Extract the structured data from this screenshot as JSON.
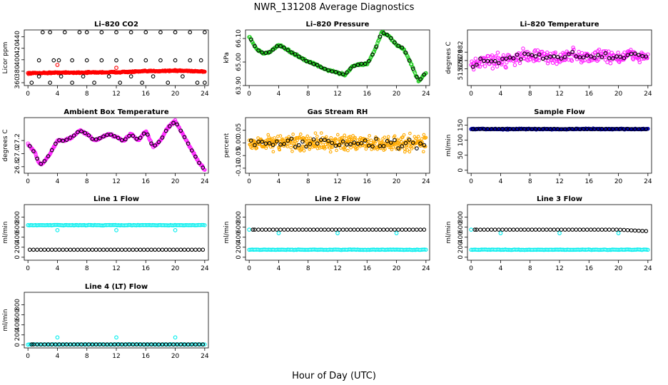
{
  "title": "NWR_131208  Average Diagnostics",
  "xlabel": "Hour of Day (UTC)",
  "colors": {
    "co2_main": "#ff0000",
    "pressure_main": "#22cc22",
    "temperature_main": "#ff22ff",
    "rh_main": "#ffaa00",
    "sample_main": "#0000aa",
    "line_main": "#00eeee",
    "avg": "#000000"
  },
  "chart_data": [
    {
      "type": "scatter",
      "title": "Li–820 CO2",
      "ylabel": "Licor ppm",
      "ylim": [
        355,
        452
      ],
      "yticks": [
        360,
        380,
        400,
        420,
        440
      ],
      "ytick_labels": [
        "360",
        "380",
        "400",
        "420",
        "440"
      ],
      "xlim": [
        -0.5,
        24.5
      ],
      "xticks": [
        0,
        4,
        8,
        12,
        16,
        20,
        24
      ],
      "xtick_labels": [
        "0",
        "4",
        "8",
        "12",
        "16",
        "20",
        "24"
      ],
      "series": [
        {
          "role": "main",
          "color": "#ff0000",
          "x": [
            0,
            2,
            4,
            6,
            8,
            10,
            12,
            14,
            16,
            18,
            20,
            22,
            24
          ],
          "y": [
            376.5,
            377,
            377.5,
            377.5,
            377.8,
            378,
            378.3,
            379,
            380,
            380.5,
            381,
            380.5,
            379.5
          ]
        },
        {
          "role": "avg_high",
          "color": "#000000",
          "x": [
            2,
            3,
            5,
            7,
            8,
            10,
            12,
            14,
            16,
            18,
            20,
            22,
            24
          ],
          "y": [
            448,
            448,
            448,
            448,
            448,
            448,
            448,
            448,
            448,
            448,
            448,
            448,
            448
          ]
        },
        {
          "role": "avg_mid",
          "color": "#000000",
          "x": [
            1.5,
            3.5,
            4.2,
            6,
            8,
            10,
            12,
            14,
            16,
            18,
            20,
            22,
            23.5
          ],
          "y": [
            399,
            399,
            399,
            399,
            399,
            399,
            399,
            399,
            399,
            399,
            399,
            399,
            399
          ]
        },
        {
          "role": "avg_low",
          "color": "#000000",
          "x": [
            0.5,
            1.5,
            3,
            4.5,
            6,
            7.5,
            9,
            11,
            12.5,
            14,
            15.5,
            17,
            19,
            21,
            23,
            24
          ],
          "y": [
            360,
            371,
            360,
            371,
            360,
            371,
            360,
            371,
            360,
            371,
            360,
            371,
            360,
            371,
            360,
            360
          ]
        }
      ]
    },
    {
      "type": "scatter",
      "title": "Li–820 Pressure",
      "ylabel": "kPa",
      "ylim": [
        63.9,
        66.5
      ],
      "yticks": [
        63.9,
        65.0,
        66.1
      ],
      "ytick_labels": [
        "63.90",
        "65.00",
        "66.10"
      ],
      "xlim": [
        -0.5,
        24.5
      ],
      "xticks": [
        0,
        4,
        8,
        12,
        16,
        20,
        24
      ],
      "xtick_labels": [
        "0",
        "4",
        "8",
        "12",
        "16",
        "20",
        "24"
      ],
      "series": [
        {
          "role": "main",
          "color": "#22cc22",
          "x": [
            0,
            1,
            2,
            3,
            4,
            5,
            6,
            7,
            8,
            9,
            10,
            11,
            12,
            13,
            14,
            15,
            16,
            17,
            18,
            19,
            20,
            21,
            22,
            23,
            24
          ],
          "y": [
            66.2,
            65.6,
            65.4,
            65.5,
            65.8,
            65.6,
            65.4,
            65.2,
            65.0,
            64.9,
            64.7,
            64.6,
            64.5,
            64.4,
            64.8,
            64.9,
            64.9,
            65.5,
            66.4,
            66.2,
            65.8,
            65.6,
            64.9,
            64.1,
            64.5
          ]
        }
      ]
    },
    {
      "type": "scatter",
      "title": "Li–820 Temperature",
      "ylabel": "degrees C",
      "ylim": [
        51.67,
        51.69
      ],
      "yticks": [
        51.676,
        51.679,
        51.682
      ],
      "ytick_labels": [
        "51.676",
        "51.679",
        "51.682"
      ],
      "xlim": [
        -0.5,
        24.5
      ],
      "xticks": [
        0,
        4,
        8,
        12,
        16,
        20,
        24
      ],
      "xtick_labels": [
        "0",
        "4",
        "8",
        "12",
        "16",
        "20",
        "24"
      ],
      "series": [
        {
          "role": "main",
          "color": "#ff22ff",
          "x": [
            0,
            2,
            4,
            6,
            8,
            10,
            12,
            14,
            16,
            18,
            20,
            22,
            24
          ],
          "y": [
            51.678,
            51.679,
            51.679,
            51.68,
            51.681,
            51.68,
            51.68,
            51.681,
            51.68,
            51.681,
            51.68,
            51.681,
            51.68
          ]
        }
      ]
    },
    {
      "type": "scatter",
      "title": "Ambient Box Temperature",
      "ylabel": "degrees C",
      "ylim": [
        26.7,
        27.55
      ],
      "yticks": [
        26.8,
        27.0,
        27.2
      ],
      "ytick_labels": [
        "26.8",
        "27.0",
        "27.2"
      ],
      "xlim": [
        -0.5,
        24.5
      ],
      "xticks": [
        0,
        4,
        8,
        12,
        16,
        20,
        24
      ],
      "xtick_labels": [
        "0",
        "4",
        "8",
        "12",
        "16",
        "20",
        "24"
      ],
      "series": [
        {
          "role": "main",
          "color": "#ff22ff",
          "x": [
            0,
            1,
            1.5,
            2,
            3,
            4,
            5,
            6,
            7,
            8,
            9,
            10,
            11,
            12,
            13,
            14,
            15,
            16,
            17,
            18,
            19,
            20,
            21,
            22,
            23,
            24
          ],
          "y": [
            27.15,
            27.0,
            26.85,
            26.85,
            27.0,
            27.2,
            27.2,
            27.25,
            27.35,
            27.3,
            27.2,
            27.25,
            27.3,
            27.25,
            27.2,
            27.3,
            27.2,
            27.35,
            27.1,
            27.2,
            27.4,
            27.5,
            27.3,
            27.1,
            26.9,
            26.75
          ]
        }
      ]
    },
    {
      "type": "scatter",
      "title": "Gas Stream RH",
      "ylabel": "percent",
      "ylim": [
        -0.12,
        0.1
      ],
      "yticks": [
        -0.1,
        -0.05,
        0.0,
        0.05
      ],
      "ytick_labels": [
        "-0.10",
        "-0.05",
        "0.00",
        "0.05"
      ],
      "xlim": [
        -0.5,
        24.5
      ],
      "xticks": [
        0,
        4,
        8,
        12,
        16,
        20,
        24
      ],
      "xtick_labels": [
        "0",
        "4",
        "8",
        "12",
        "16",
        "20",
        "24"
      ],
      "series": [
        {
          "role": "main",
          "color": "#ffaa00",
          "x": [
            0,
            4,
            8,
            12,
            16,
            20,
            24
          ],
          "y": [
            0,
            0,
            0,
            0,
            0,
            0,
            0
          ]
        }
      ]
    },
    {
      "type": "scatter",
      "title": "Sample Flow",
      "ylabel": "ml/min",
      "ylim": [
        -10,
        175
      ],
      "yticks": [
        0,
        50,
        100,
        150
      ],
      "ytick_labels": [
        "0",
        "50",
        "100",
        "150"
      ],
      "xlim": [
        -0.5,
        24.5
      ],
      "xticks": [
        0,
        4,
        8,
        12,
        16,
        20,
        24
      ],
      "xtick_labels": [
        "0",
        "4",
        "8",
        "12",
        "16",
        "20",
        "24"
      ],
      "series": [
        {
          "role": "main",
          "color": "#0000aa",
          "x": [
            0,
            4,
            8,
            12,
            16,
            20,
            24
          ],
          "y": [
            137,
            137,
            137,
            137,
            137,
            137,
            137
          ]
        }
      ]
    },
    {
      "type": "scatter",
      "title": "Line 1 Flow",
      "ylabel": "ml/min",
      "ylim": [
        -60,
        1050
      ],
      "yticks": [
        0,
        200,
        400,
        600,
        800
      ],
      "ytick_labels": [
        "0",
        "200",
        "400",
        "600",
        "800"
      ],
      "xlim": [
        -0.5,
        24.5
      ],
      "xticks": [
        0,
        4,
        8,
        12,
        16,
        20,
        24
      ],
      "xtick_labels": [
        "0",
        "4",
        "8",
        "12",
        "16",
        "20",
        "24"
      ],
      "series": [
        {
          "role": "main",
          "color": "#00eeee",
          "x": [
            0,
            4,
            8,
            12,
            16,
            20,
            24
          ],
          "y": [
            640,
            640,
            640,
            640,
            640,
            640,
            640
          ]
        },
        {
          "role": "outlier",
          "color": "#00eeee",
          "x": [
            4,
            12,
            20
          ],
          "y": [
            540,
            540,
            540
          ]
        },
        {
          "role": "avg",
          "color": "#000000",
          "x": [
            0,
            4,
            8,
            12,
            16,
            20,
            24
          ],
          "y": [
            150,
            150,
            150,
            150,
            150,
            150,
            150
          ]
        }
      ]
    },
    {
      "type": "scatter",
      "title": "Line 2 Flow",
      "ylabel": "ml/min",
      "ylim": [
        -60,
        1050
      ],
      "yticks": [
        0,
        200,
        400,
        600,
        800
      ],
      "ytick_labels": [
        "0",
        "200",
        "400",
        "600",
        "800"
      ],
      "xlim": [
        -0.5,
        24.5
      ],
      "xticks": [
        0,
        4,
        8,
        12,
        16,
        20,
        24
      ],
      "xtick_labels": [
        "0",
        "4",
        "8",
        "12",
        "16",
        "20",
        "24"
      ],
      "series": [
        {
          "role": "main",
          "color": "#00eeee",
          "x": [
            0,
            4,
            8,
            12,
            16,
            20,
            24
          ],
          "y": [
            150,
            150,
            150,
            150,
            150,
            150,
            150
          ]
        },
        {
          "role": "outlier",
          "color": "#00eeee",
          "x": [
            0,
            4,
            12,
            20
          ],
          "y": [
            550,
            480,
            480,
            480
          ]
        },
        {
          "role": "avg",
          "color": "#000000",
          "x": [
            0.5,
            4,
            8,
            12,
            16,
            20,
            24
          ],
          "y": [
            550,
            550,
            550,
            550,
            550,
            550,
            550
          ]
        }
      ]
    },
    {
      "type": "scatter",
      "title": "Line 3 Flow",
      "ylabel": "ml/min",
      "ylim": [
        -60,
        1050
      ],
      "yticks": [
        0,
        200,
        400,
        600,
        800
      ],
      "ytick_labels": [
        "0",
        "200",
        "400",
        "600",
        "800"
      ],
      "xlim": [
        -0.5,
        24.5
      ],
      "xticks": [
        0,
        4,
        8,
        12,
        16,
        20,
        24
      ],
      "xtick_labels": [
        "0",
        "4",
        "8",
        "12",
        "16",
        "20",
        "24"
      ],
      "series": [
        {
          "role": "main",
          "color": "#00eeee",
          "x": [
            0,
            4,
            8,
            12,
            16,
            20,
            24
          ],
          "y": [
            150,
            150,
            150,
            150,
            150,
            150,
            150
          ]
        },
        {
          "role": "outlier",
          "color": "#00eeee",
          "x": [
            0,
            4,
            12,
            20
          ],
          "y": [
            550,
            480,
            480,
            480
          ]
        },
        {
          "role": "avg",
          "color": "#000000",
          "x": [
            0.5,
            4,
            8,
            12,
            16,
            20,
            24
          ],
          "y": [
            550,
            550,
            550,
            550,
            550,
            550,
            520
          ]
        }
      ]
    },
    {
      "type": "scatter",
      "title": "Line 4 (LT) Flow",
      "ylabel": "ml/min",
      "ylim": [
        -60,
        1050
      ],
      "yticks": [
        0,
        200,
        400,
        600,
        800
      ],
      "ytick_labels": [
        "0",
        "200",
        "400",
        "600",
        "800"
      ],
      "xlim": [
        -0.5,
        24.5
      ],
      "xticks": [
        0,
        4,
        8,
        12,
        16,
        20,
        24
      ],
      "xtick_labels": [
        "0",
        "4",
        "8",
        "12",
        "16",
        "20",
        "24"
      ],
      "series": [
        {
          "role": "main",
          "color": "#00eeee",
          "x": [
            0,
            4,
            8,
            12,
            16,
            20,
            24
          ],
          "y": [
            10,
            10,
            10,
            10,
            10,
            10,
            10
          ]
        },
        {
          "role": "outlier",
          "color": "#00eeee",
          "x": [
            4,
            12,
            20
          ],
          "y": [
            150,
            150,
            150
          ]
        },
        {
          "role": "avg",
          "color": "#000000",
          "x": [
            0.5,
            4,
            8,
            12,
            16,
            20,
            24
          ],
          "y": [
            10,
            10,
            10,
            10,
            10,
            10,
            10
          ]
        }
      ]
    }
  ]
}
